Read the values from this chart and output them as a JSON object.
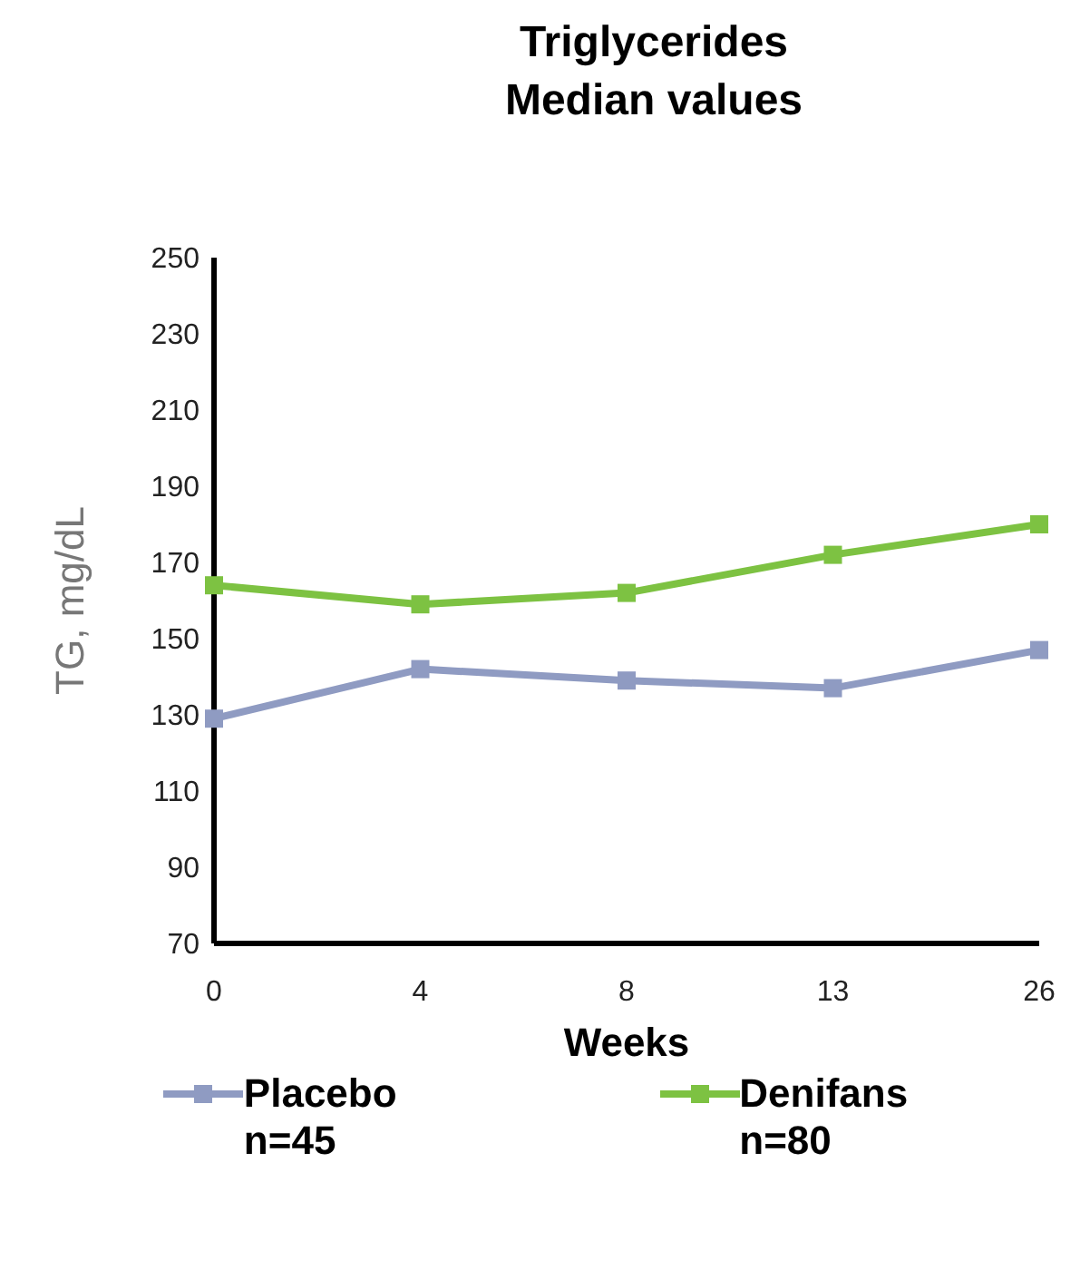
{
  "chart_data": {
    "type": "line",
    "title": "Triglycerides\nMedian values",
    "xlabel": "Weeks",
    "ylabel": "TG, mg/dL",
    "categories": [
      "0",
      "4",
      "8",
      "13",
      "26"
    ],
    "series": [
      {
        "name": "Placebo",
        "color": "#8f9bc2",
        "values": [
          129,
          142,
          139,
          137,
          147
        ]
      },
      {
        "name": "Denifans",
        "color": "#7dc242",
        "values": [
          164,
          159,
          162,
          172,
          180
        ]
      }
    ],
    "annotations": [
      "n=45",
      "n=80"
    ],
    "ylim": [
      70,
      250
    ],
    "yticks": [
      70,
      90,
      110,
      130,
      150,
      170,
      190,
      210,
      230,
      250
    ],
    "grid": false,
    "legend": "bottom",
    "marker": "square",
    "line_style": "solid"
  }
}
